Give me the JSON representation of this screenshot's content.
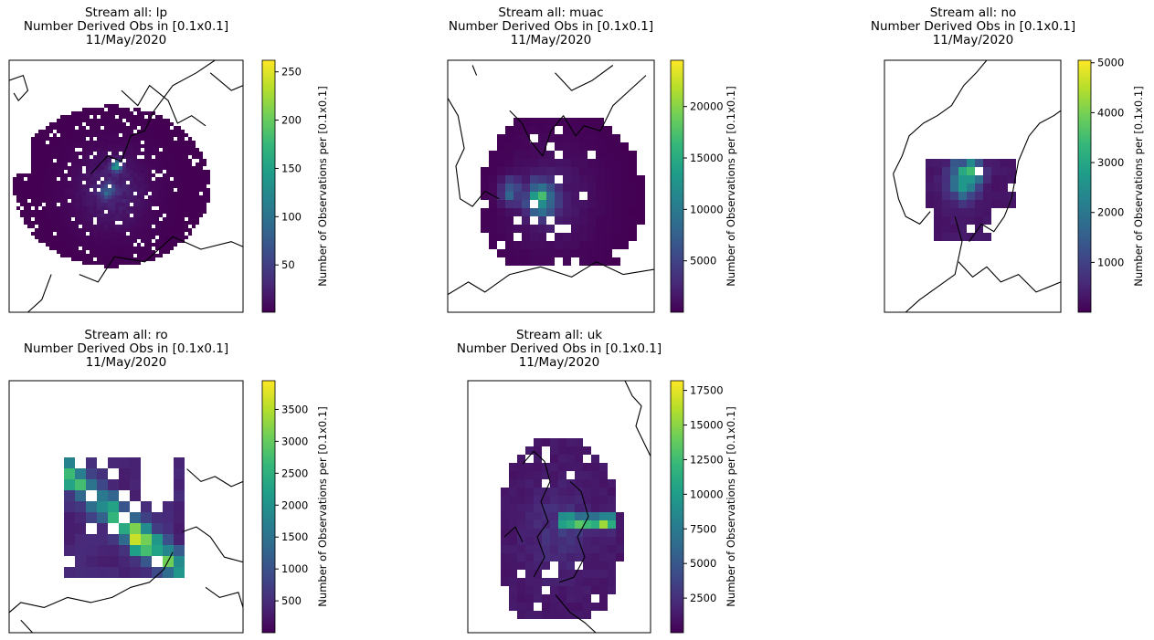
{
  "figure": {
    "subtitle": "Number Derived Obs in [0.1x0.1]",
    "date": "11/May/2020",
    "colorbar_label": "Number of Observations per [0.1x0.1]",
    "colormap": [
      "#440154",
      "#482878",
      "#3e4989",
      "#31688e",
      "#26828e",
      "#1f9e89",
      "#35b779",
      "#6ece58",
      "#b5de2b",
      "#fde725"
    ]
  },
  "chart_data": [
    {
      "type": "heatmap",
      "title": "Stream all: lp",
      "subtitle": "Number Derived Obs in [0.1x0.1]",
      "date": "11/May/2020",
      "colorbar_label": "Number of Observations per [0.1x0.1]",
      "clim": [
        1,
        262
      ],
      "colorbar_ticks": [
        50,
        100,
        150,
        200,
        250
      ]
    },
    {
      "type": "heatmap",
      "title": "Stream all: muac",
      "subtitle": "Number Derived Obs in [0.1x0.1]",
      "date": "11/May/2020",
      "colorbar_label": "Number of Observations per [0.1x0.1]",
      "clim": [
        1,
        24500
      ],
      "colorbar_ticks": [
        5000,
        10000,
        15000,
        20000
      ]
    },
    {
      "type": "heatmap",
      "title": "Stream all: no",
      "subtitle": "Number Derived Obs in [0.1x0.1]",
      "date": "11/May/2020",
      "colorbar_label": "Number of Observations per [0.1x0.1]",
      "clim": [
        1,
        5050
      ],
      "colorbar_ticks": [
        1000,
        2000,
        3000,
        4000,
        5000
      ]
    },
    {
      "type": "heatmap",
      "title": "Stream all: ro",
      "subtitle": "Number Derived Obs in [0.1x0.1]",
      "date": "11/May/2020",
      "colorbar_label": "Number of Observations per [0.1x0.1]",
      "clim": [
        1,
        3950
      ],
      "colorbar_ticks": [
        500,
        1000,
        1500,
        2000,
        2500,
        3000,
        3500
      ]
    },
    {
      "type": "heatmap",
      "title": "Stream all: uk",
      "subtitle": "Number Derived Obs in [0.1x0.1]",
      "date": "11/May/2020",
      "colorbar_label": "Number of Observations per [0.1x0.1]",
      "clim": [
        1,
        18200
      ],
      "colorbar_ticks": [
        2500,
        5000,
        7500,
        10000,
        12500,
        15000,
        17500
      ]
    }
  ]
}
